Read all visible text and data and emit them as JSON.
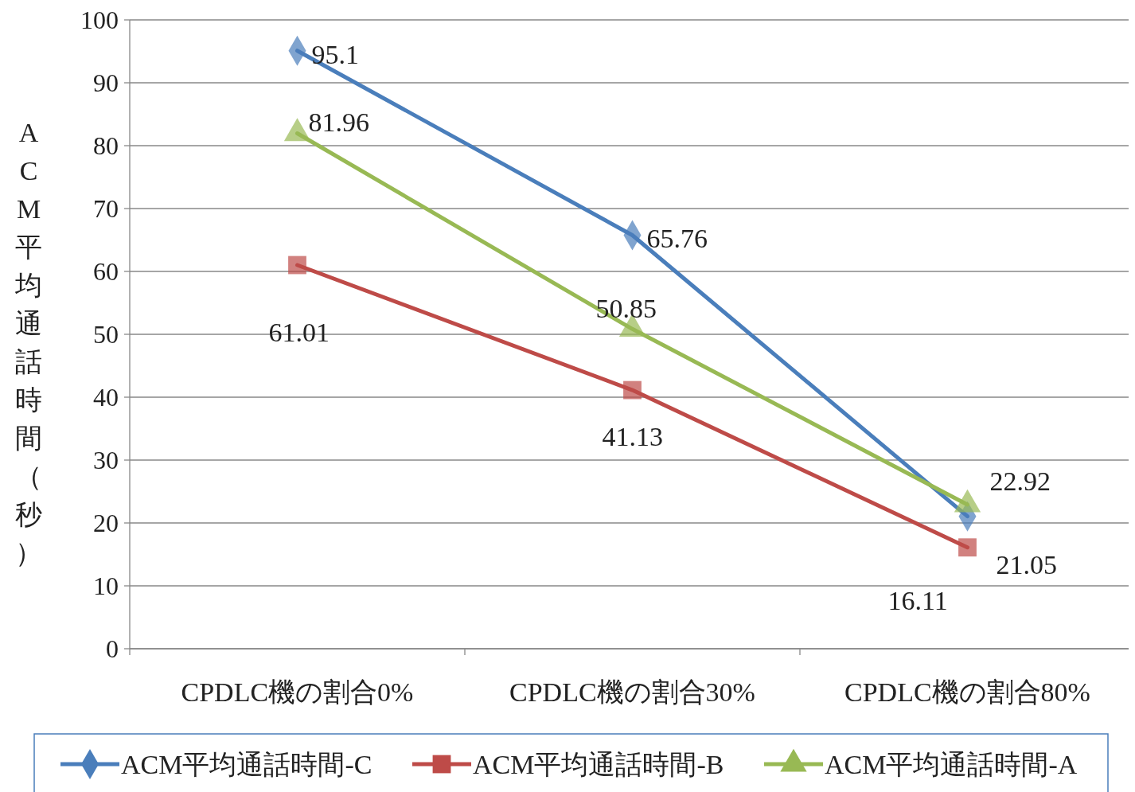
{
  "chart_data": {
    "type": "line",
    "ylabel": "ACM平均通話時間（秒）",
    "categories": [
      "CPDLC機の割合0%",
      "CPDLC機の割合30%",
      "CPDLC機の割合80%"
    ],
    "series": [
      {
        "name": "ACM平均通話時間-C",
        "color": "#4a7ebb",
        "marker": "diamond",
        "values": [
          95.1,
          65.76,
          21.05
        ]
      },
      {
        "name": "ACM平均通話時間-B",
        "color": "#be4b48",
        "marker": "square",
        "values": [
          61.01,
          41.13,
          16.11
        ]
      },
      {
        "name": "ACM平均通話時間-A",
        "color": "#98b954",
        "marker": "triangle",
        "values": [
          81.96,
          50.85,
          22.92
        ]
      }
    ],
    "ylim": [
      0,
      100
    ],
    "yticks": [
      0,
      10,
      20,
      30,
      40,
      50,
      60,
      70,
      80,
      90,
      100
    ],
    "grid": "y",
    "legend": "bottom",
    "data_labels": true
  }
}
